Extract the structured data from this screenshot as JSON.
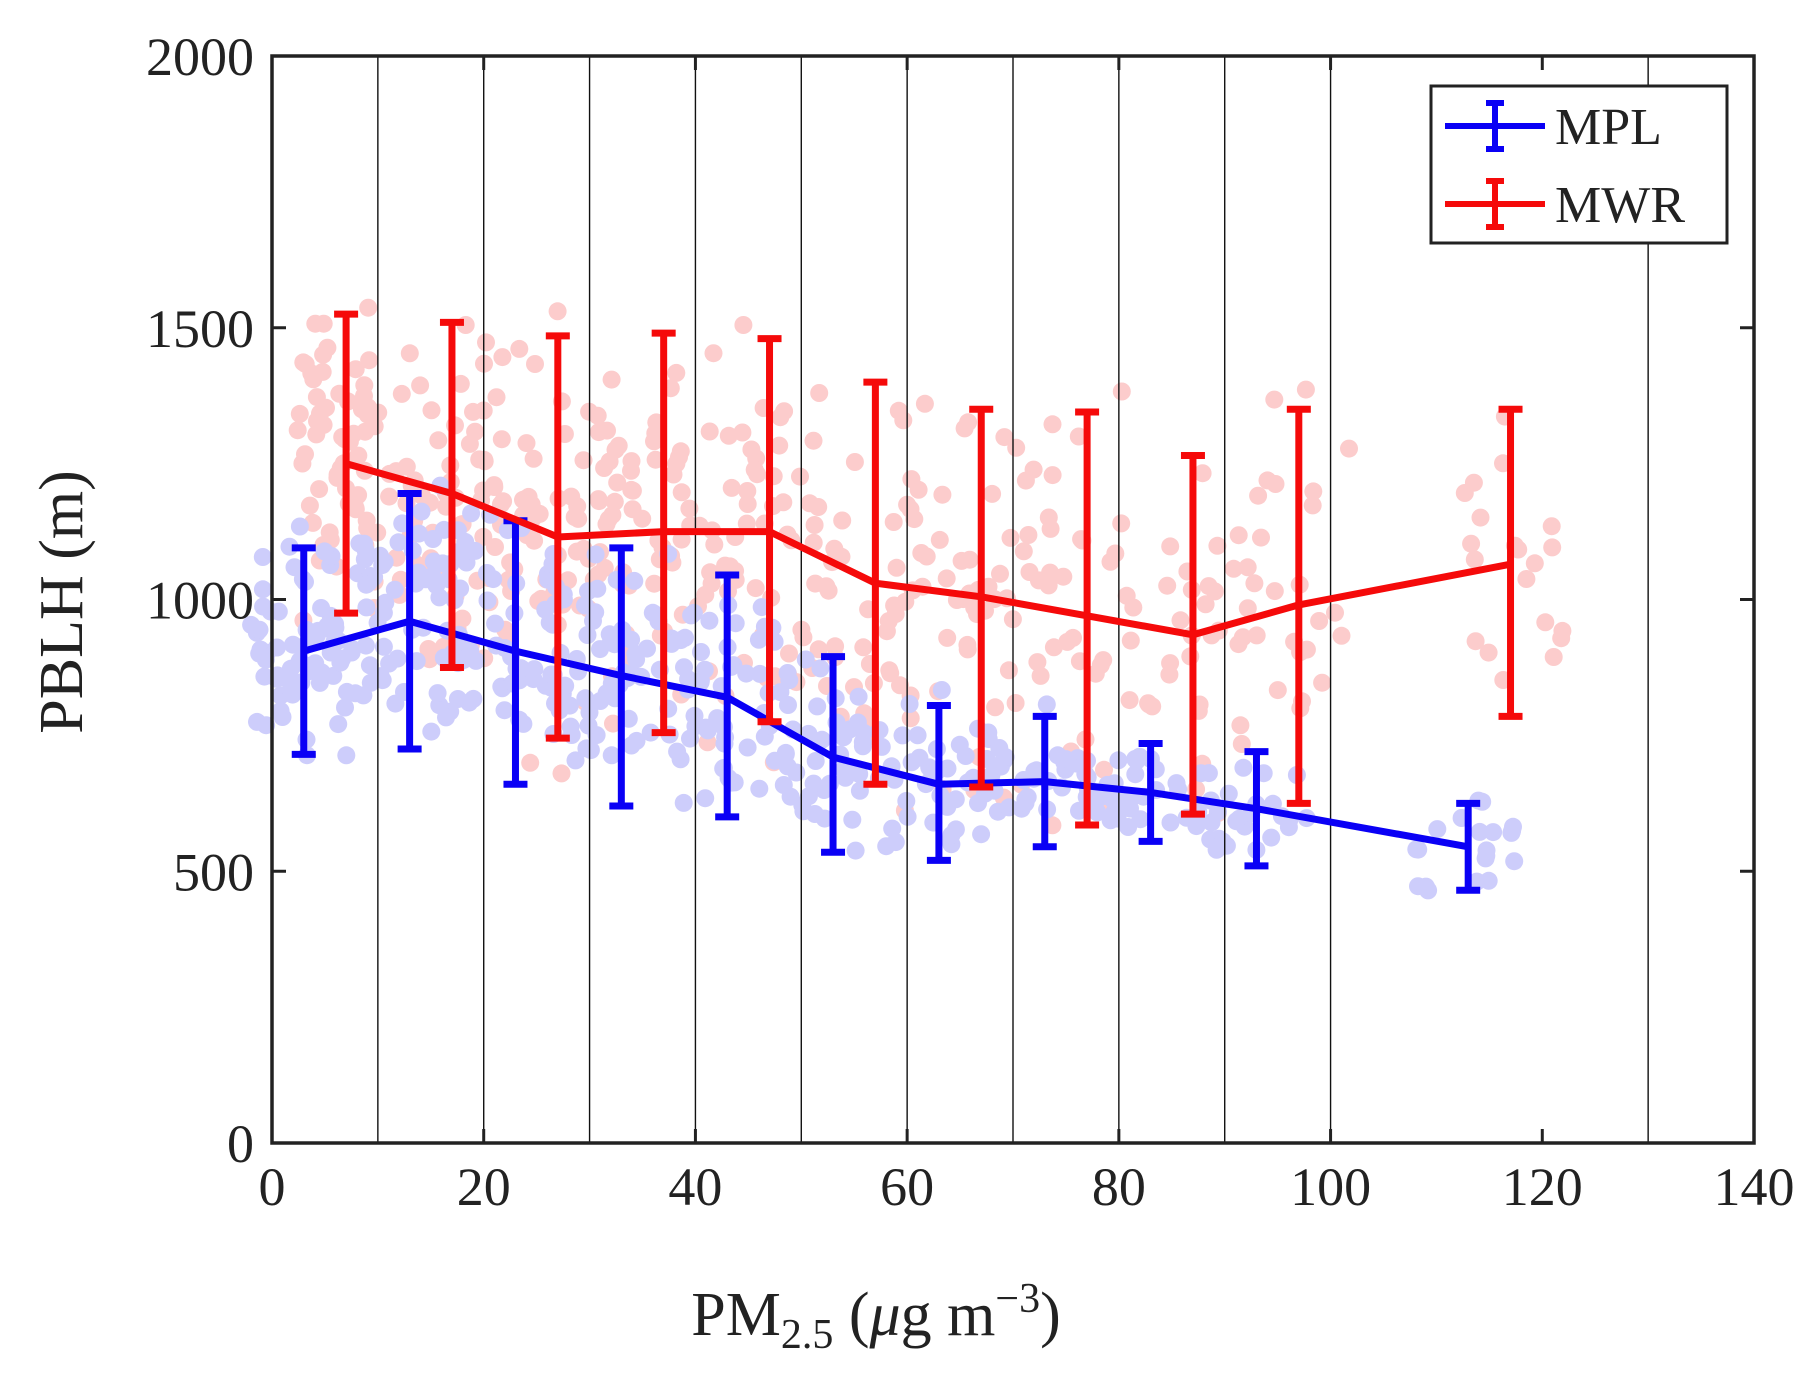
{
  "chart_data": {
    "type": "line",
    "title": "",
    "xlabel": {
      "main": "PM",
      "sub": "2.5",
      "rest": " (",
      "mu": "μ",
      "unit": "g m",
      "sup": "−3",
      "close": ")"
    },
    "ylabel": "PBLH (m)",
    "xlim": [
      0,
      140
    ],
    "ylim": [
      0,
      2000
    ],
    "xticks": [
      0,
      20,
      40,
      60,
      80,
      100,
      120,
      140
    ],
    "yticks": [
      0,
      500,
      1000,
      1500,
      2000
    ],
    "vertical_grid_lines": [
      10,
      20,
      30,
      40,
      50,
      60,
      70,
      80,
      90,
      100,
      130
    ],
    "legend": {
      "position": "top-right",
      "entries": [
        "MPL",
        "MWR"
      ]
    },
    "series": [
      {
        "name": "MPL",
        "color": "#0a00f5",
        "scatter_color": "#cdcdfb",
        "x": [
          3,
          13,
          23,
          33,
          43,
          53,
          63,
          73,
          83,
          93,
          113
        ],
        "values": [
          905,
          960,
          905,
          860,
          820,
          710,
          660,
          665,
          645,
          615,
          545
        ],
        "err_low": [
          715,
          725,
          660,
          620,
          600,
          535,
          520,
          545,
          555,
          510,
          465
        ],
        "err_high": [
          1095,
          1195,
          1145,
          1095,
          1045,
          895,
          805,
          785,
          735,
          720,
          625
        ]
      },
      {
        "name": "MWR",
        "color": "#f50a0a",
        "scatter_color": "#fccccc",
        "x": [
          7,
          17,
          27,
          37,
          47,
          57,
          67,
          77,
          87,
          97,
          117
        ],
        "values": [
          1250,
          1195,
          1115,
          1125,
          1125,
          1030,
          1005,
          970,
          935,
          990,
          1065
        ],
        "err_low": [
          975,
          875,
          745,
          755,
          775,
          660,
          655,
          585,
          605,
          625,
          785
        ],
        "err_high": [
          1525,
          1510,
          1485,
          1490,
          1480,
          1400,
          1350,
          1345,
          1265,
          1350,
          1350
        ]
      }
    ]
  }
}
